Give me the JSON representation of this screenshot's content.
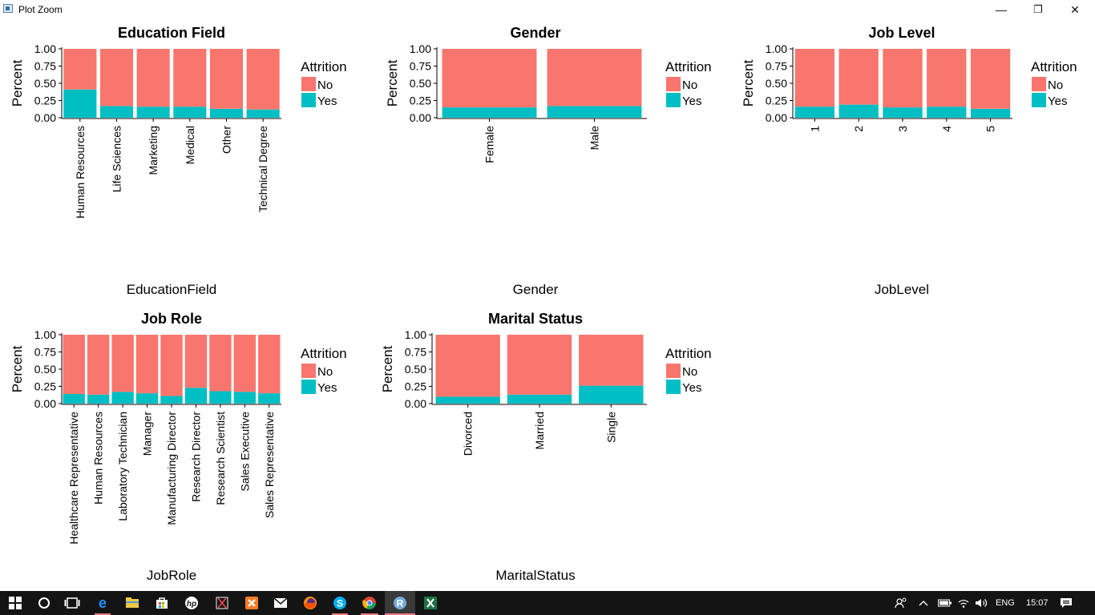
{
  "window": {
    "title": "Plot Zoom",
    "minimize_glyph": "—",
    "restore_glyph": "❐",
    "close_glyph": "✕"
  },
  "legend": {
    "title": "Attrition",
    "items": [
      {
        "label": "No",
        "color": "#F8766D"
      },
      {
        "label": "Yes",
        "color": "#00BFC4"
      }
    ]
  },
  "y_axis": {
    "label": "Percent",
    "ticks": [
      "0.00",
      "0.25",
      "0.50",
      "0.75",
      "1.00"
    ]
  },
  "chart_data": [
    {
      "type": "bar",
      "title": "Education Field",
      "xlabel": "EducationField",
      "ylabel": "Percent",
      "ylim": [
        0,
        1
      ],
      "categories": [
        "Human Resources",
        "Life Sciences",
        "Marketing",
        "Medical",
        "Other",
        "Technical Degree"
      ],
      "series": [
        {
          "name": "No",
          "values": [
            0.59,
            0.83,
            0.84,
            0.84,
            0.87,
            0.88
          ]
        },
        {
          "name": "Yes",
          "values": [
            0.41,
            0.17,
            0.16,
            0.16,
            0.13,
            0.12
          ]
        }
      ]
    },
    {
      "type": "bar",
      "title": "Gender",
      "xlabel": "Gender",
      "ylabel": "Percent",
      "ylim": [
        0,
        1
      ],
      "categories": [
        "Female",
        "Male"
      ],
      "series": [
        {
          "name": "No",
          "values": [
            0.85,
            0.83
          ]
        },
        {
          "name": "Yes",
          "values": [
            0.15,
            0.17
          ]
        }
      ]
    },
    {
      "type": "bar",
      "title": "Job Level",
      "xlabel": "JobLevel",
      "ylabel": "Percent",
      "ylim": [
        0,
        1
      ],
      "categories": [
        "1",
        "2",
        "3",
        "4",
        "5"
      ],
      "series": [
        {
          "name": "No",
          "values": [
            0.84,
            0.81,
            0.85,
            0.84,
            0.87
          ]
        },
        {
          "name": "Yes",
          "values": [
            0.16,
            0.19,
            0.15,
            0.16,
            0.13
          ]
        }
      ]
    },
    {
      "type": "bar",
      "title": "Job Role",
      "xlabel": "JobRole",
      "ylabel": "Percent",
      "ylim": [
        0,
        1
      ],
      "categories": [
        "Healthcare Representative",
        "Human Resources",
        "Laboratory Technician",
        "Manager",
        "Manufacturing Director",
        "Research Director",
        "Research Scientist",
        "Sales Executive",
        "Sales Representative"
      ],
      "series": [
        {
          "name": "No",
          "values": [
            0.86,
            0.87,
            0.83,
            0.85,
            0.89,
            0.77,
            0.82,
            0.83,
            0.85
          ]
        },
        {
          "name": "Yes",
          "values": [
            0.14,
            0.13,
            0.17,
            0.15,
            0.11,
            0.23,
            0.18,
            0.17,
            0.15
          ]
        }
      ]
    },
    {
      "type": "bar",
      "title": "Marital Status",
      "xlabel": "MaritalStatus",
      "ylabel": "Percent",
      "ylim": [
        0,
        1
      ],
      "categories": [
        "Divorced",
        "Married",
        "Single"
      ],
      "series": [
        {
          "name": "No",
          "values": [
            0.9,
            0.87,
            0.74
          ]
        },
        {
          "name": "Yes",
          "values": [
            0.1,
            0.13,
            0.26
          ]
        }
      ]
    }
  ],
  "taskbar": {
    "apps": [
      {
        "name": "start-icon"
      },
      {
        "name": "cortana-icon"
      },
      {
        "name": "task-view-icon"
      },
      {
        "name": "edge-icon"
      },
      {
        "name": "file-explorer-icon"
      },
      {
        "name": "store-icon"
      },
      {
        "name": "hp-icon"
      },
      {
        "name": "snipping-tool-icon"
      },
      {
        "name": "xampp-icon"
      },
      {
        "name": "mail-icon"
      },
      {
        "name": "firefox-icon"
      },
      {
        "name": "skype-icon"
      },
      {
        "name": "chrome-icon"
      },
      {
        "name": "rstudio-icon"
      },
      {
        "name": "excel-icon"
      }
    ],
    "tray": {
      "language": "ENG",
      "time": "15:07"
    }
  }
}
